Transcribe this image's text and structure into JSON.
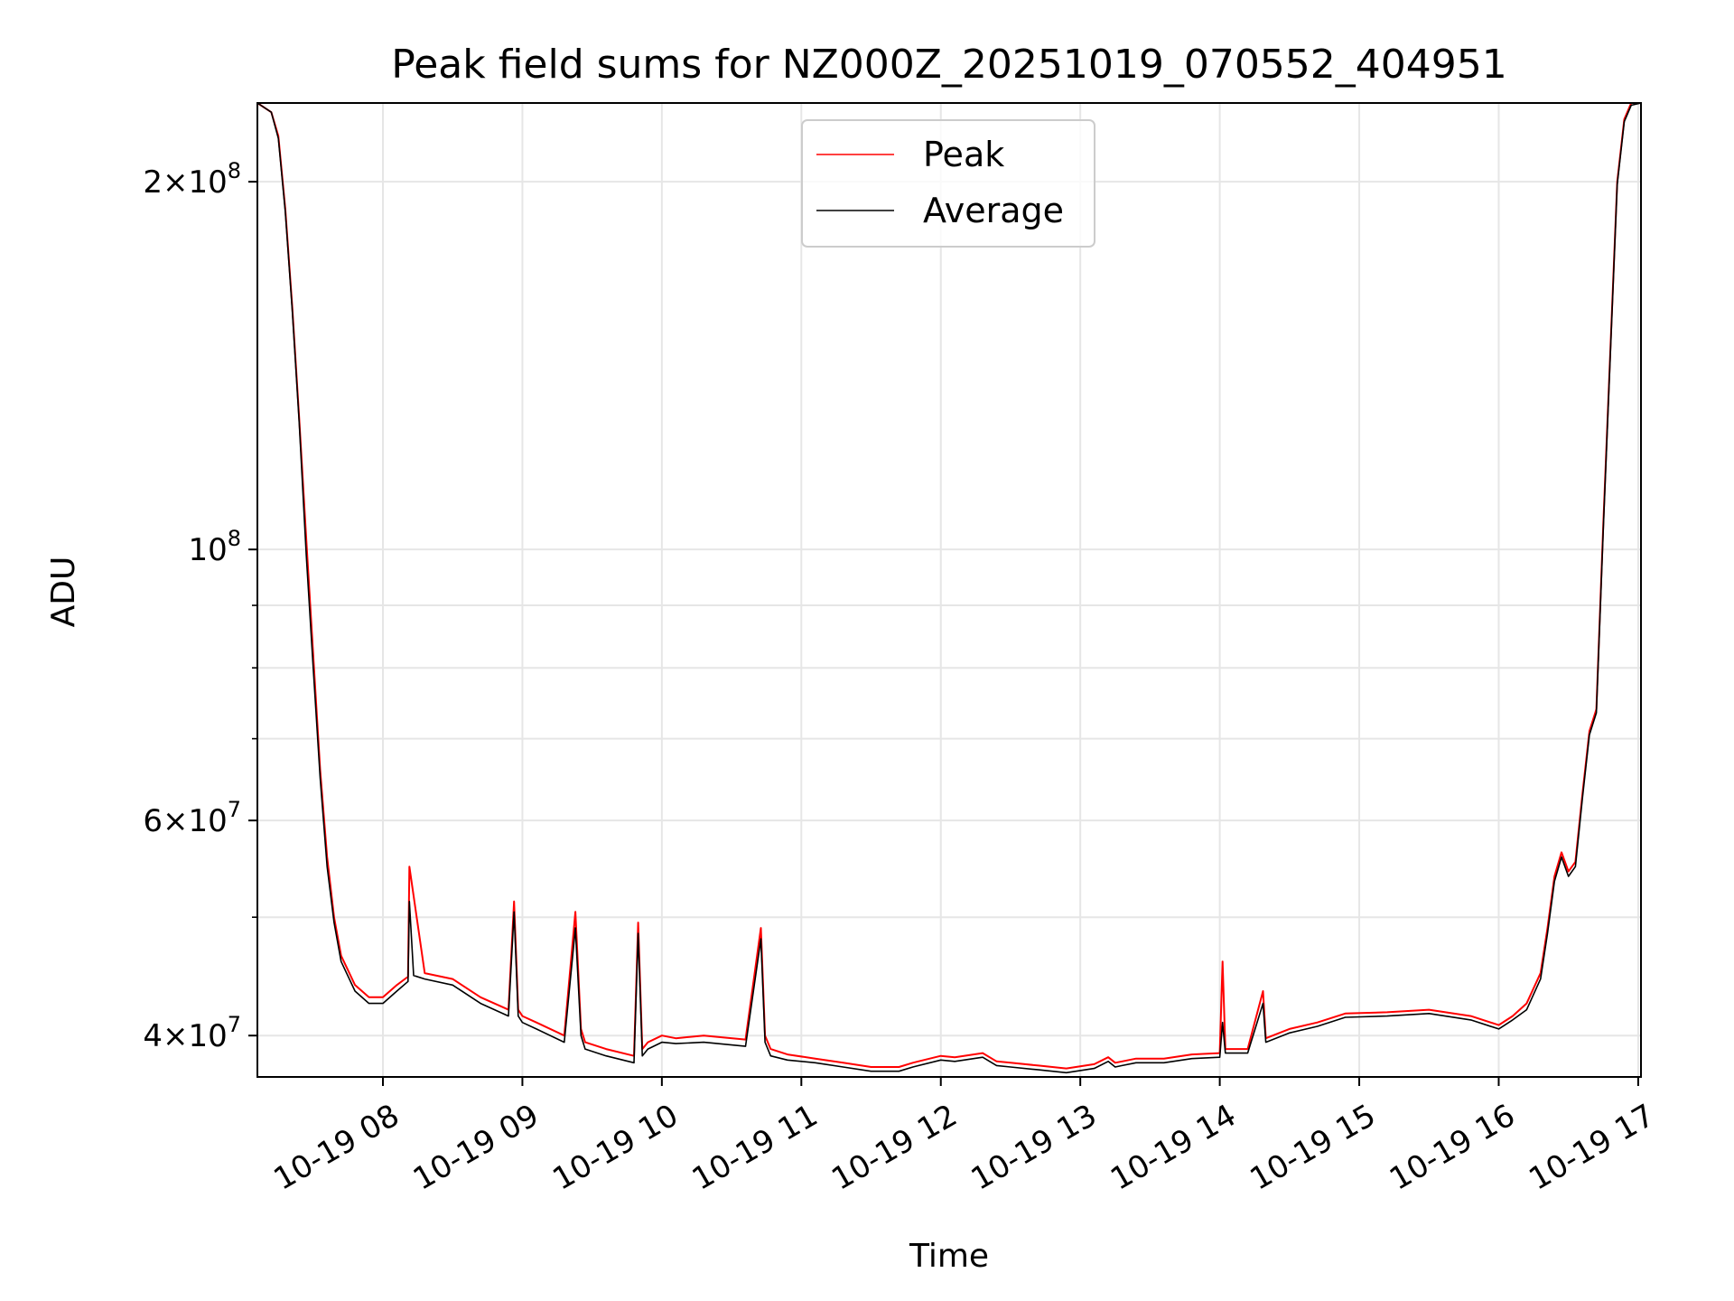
{
  "chart_data": {
    "type": "line",
    "title": "Peak field sums for NZ000Z_20251019_070552_404951",
    "xlabel": "Time",
    "ylabel": "ADU",
    "yscale": "log",
    "ylim": [
      37000000,
      232000000
    ],
    "xlim": [
      7.1,
      17.02
    ],
    "grid": true,
    "legend_position": "top-center",
    "x_ticks": [
      {
        "value": 8,
        "label": "10-19 08"
      },
      {
        "value": 9,
        "label": "10-19 09"
      },
      {
        "value": 10,
        "label": "10-19 10"
      },
      {
        "value": 11,
        "label": "10-19 11"
      },
      {
        "value": 12,
        "label": "10-19 12"
      },
      {
        "value": 13,
        "label": "10-19 13"
      },
      {
        "value": 14,
        "label": "10-19 14"
      },
      {
        "value": 15,
        "label": "10-19 15"
      },
      {
        "value": 16,
        "label": "10-19 16"
      },
      {
        "value": 17,
        "label": "10-19 17"
      }
    ],
    "y_ticks": [
      {
        "value": 40000000,
        "mant": "4",
        "exp": "7"
      },
      {
        "value": 60000000,
        "mant": "6",
        "exp": "7"
      },
      {
        "value": 100000000,
        "mant": "",
        "exp": "8"
      },
      {
        "value": 200000000,
        "mant": "2",
        "exp": "8"
      }
    ],
    "y_minor_ticks": [
      50000000,
      70000000,
      80000000,
      90000000
    ],
    "series": [
      {
        "name": "Peak",
        "color": "#ff0000",
        "x": [
          7.1,
          7.2,
          7.25,
          7.3,
          7.35,
          7.4,
          7.45,
          7.5,
          7.55,
          7.6,
          7.65,
          7.7,
          7.8,
          7.9,
          8.0,
          8.1,
          8.18,
          8.19,
          8.3,
          8.5,
          8.7,
          8.9,
          8.94,
          8.97,
          9.0,
          9.1,
          9.3,
          9.38,
          9.42,
          9.45,
          9.6,
          9.8,
          9.83,
          9.86,
          9.9,
          10.0,
          10.1,
          10.3,
          10.6,
          10.71,
          10.74,
          10.78,
          10.9,
          11.1,
          11.3,
          11.5,
          11.7,
          11.8,
          12.0,
          12.1,
          12.3,
          12.4,
          12.5,
          12.7,
          12.9,
          13.1,
          13.2,
          13.25,
          13.3,
          13.4,
          13.6,
          13.8,
          14.0,
          14.02,
          14.04,
          14.2,
          14.31,
          14.33,
          14.5,
          14.7,
          14.9,
          15.2,
          15.5,
          15.8,
          16.0,
          16.1,
          16.2,
          16.3,
          16.35,
          16.4,
          16.45,
          16.5,
          16.55,
          16.6,
          16.65,
          16.7,
          16.75,
          16.8,
          16.85,
          16.9,
          16.95,
          17.02
        ],
        "y": [
          232000000,
          228000000,
          218000000,
          190000000,
          158000000,
          128000000,
          102000000,
          82000000,
          66000000,
          56000000,
          50000000,
          46500000,
          44000000,
          43000000,
          43000000,
          44000000,
          44700000,
          55000000,
          45000000,
          44500000,
          43000000,
          42000000,
          51500000,
          42000000,
          41500000,
          41000000,
          40000000,
          50500000,
          40500000,
          39500000,
          39000000,
          38500000,
          49500000,
          39000000,
          39500000,
          40000000,
          39800000,
          40000000,
          39700000,
          49000000,
          40000000,
          39000000,
          38600000,
          38300000,
          38000000,
          37700000,
          37700000,
          38000000,
          38500000,
          38400000,
          38700000,
          38100000,
          38000000,
          37800000,
          37600000,
          37900000,
          38400000,
          38000000,
          38100000,
          38300000,
          38300000,
          38600000,
          38700000,
          46000000,
          39000000,
          39000000,
          43500000,
          39800000,
          40500000,
          41000000,
          41700000,
          41800000,
          42000000,
          41500000,
          40800000,
          41500000,
          42500000,
          45000000,
          49000000,
          54000000,
          56500000,
          54500000,
          55500000,
          63000000,
          71000000,
          74000000,
          105000000,
          145000000,
          200000000,
          225000000,
          232000000,
          232000000
        ]
      },
      {
        "name": "Average",
        "color": "#000000",
        "x": [
          7.1,
          7.2,
          7.25,
          7.3,
          7.35,
          7.4,
          7.45,
          7.5,
          7.55,
          7.6,
          7.65,
          7.7,
          7.8,
          7.9,
          8.0,
          8.1,
          8.18,
          8.19,
          8.22,
          8.3,
          8.5,
          8.7,
          8.9,
          8.94,
          8.97,
          9.0,
          9.1,
          9.3,
          9.38,
          9.42,
          9.45,
          9.6,
          9.8,
          9.83,
          9.86,
          9.9,
          10.0,
          10.1,
          10.3,
          10.6,
          10.71,
          10.74,
          10.78,
          10.9,
          11.1,
          11.3,
          11.5,
          11.7,
          11.8,
          12.0,
          12.1,
          12.3,
          12.4,
          12.5,
          12.7,
          12.9,
          13.1,
          13.2,
          13.25,
          13.3,
          13.4,
          13.6,
          13.8,
          14.0,
          14.02,
          14.04,
          14.2,
          14.31,
          14.33,
          14.5,
          14.7,
          14.9,
          15.2,
          15.5,
          15.8,
          16.0,
          16.1,
          16.2,
          16.3,
          16.35,
          16.4,
          16.45,
          16.5,
          16.55,
          16.6,
          16.65,
          16.7,
          16.75,
          16.8,
          16.85,
          16.9,
          16.95,
          17.02
        ],
        "y": [
          232000000,
          228000000,
          217000000,
          189000000,
          157000000,
          127000000,
          99000000,
          80000000,
          65000000,
          55000000,
          49500000,
          46000000,
          43500000,
          42500000,
          42500000,
          43500000,
          44300000,
          51500000,
          44800000,
          44500000,
          44000000,
          42500000,
          41500000,
          50500000,
          41500000,
          41000000,
          40500000,
          39500000,
          49000000,
          40000000,
          39000000,
          38500000,
          38000000,
          48500000,
          38500000,
          39000000,
          39500000,
          39400000,
          39500000,
          39200000,
          48000000,
          39500000,
          38500000,
          38200000,
          38000000,
          37700000,
          37400000,
          37400000,
          37700000,
          38200000,
          38100000,
          38400000,
          37800000,
          37700000,
          37500000,
          37300000,
          37600000,
          38100000,
          37700000,
          37800000,
          38000000,
          38000000,
          38300000,
          38400000,
          41000000,
          38700000,
          38700000,
          42500000,
          39500000,
          40200000,
          40700000,
          41400000,
          41500000,
          41700000,
          41200000,
          40500000,
          41200000,
          42000000,
          44500000,
          48500000,
          53500000,
          56000000,
          54000000,
          55000000,
          62500000,
          70500000,
          73500000,
          104000000,
          144000000,
          199000000,
          224000000,
          231000000,
          232000000
        ]
      }
    ]
  }
}
